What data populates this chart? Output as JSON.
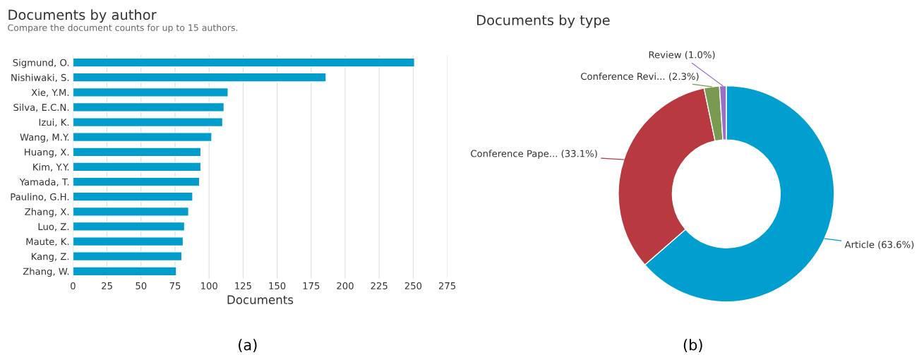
{
  "chart_data": [
    {
      "type": "bar",
      "orientation": "horizontal",
      "title": "Documents by author",
      "subtitle": "Compare the document counts for up to 15 authors.",
      "xlabel": "Documents",
      "categories": [
        "Sigmund, O.",
        "Nishiwaki, S.",
        "Xie, Y.M.",
        "Silva, E.C.N.",
        "Izui, K.",
        "Wang, M.Y.",
        "Huang, X.",
        "Kim, Y.Y.",
        "Yamada, T.",
        "Paulino, G.H.",
        "Zhang, X.",
        "Luo, Z.",
        "Maute, K.",
        "Kang, Z.",
        "Zhang, W."
      ],
      "values": [
        251,
        186,
        114,
        111,
        110,
        102,
        94,
        94,
        93,
        88,
        85,
        82,
        81,
        80,
        76
      ],
      "color": "#009dcc",
      "xlim": [
        0,
        275
      ],
      "xticks": [
        0,
        25,
        50,
        75,
        100,
        125,
        150,
        175,
        200,
        225,
        250,
        275
      ],
      "grid": "x",
      "annotations": [
        "(a)"
      ]
    },
    {
      "type": "donut",
      "title": "Documents by type",
      "categories": [
        "Article (63.6%)",
        "Conference Pape... (33.1%)",
        "Conference Revi... (2.3%)",
        "Review (1.0%)"
      ],
      "values": [
        63.6,
        33.1,
        2.3,
        1.0
      ],
      "colors": [
        "#009fd0",
        "#b8393f",
        "#7a9a51",
        "#9b6fc2"
      ],
      "annotations": [
        "(b)"
      ]
    }
  ]
}
